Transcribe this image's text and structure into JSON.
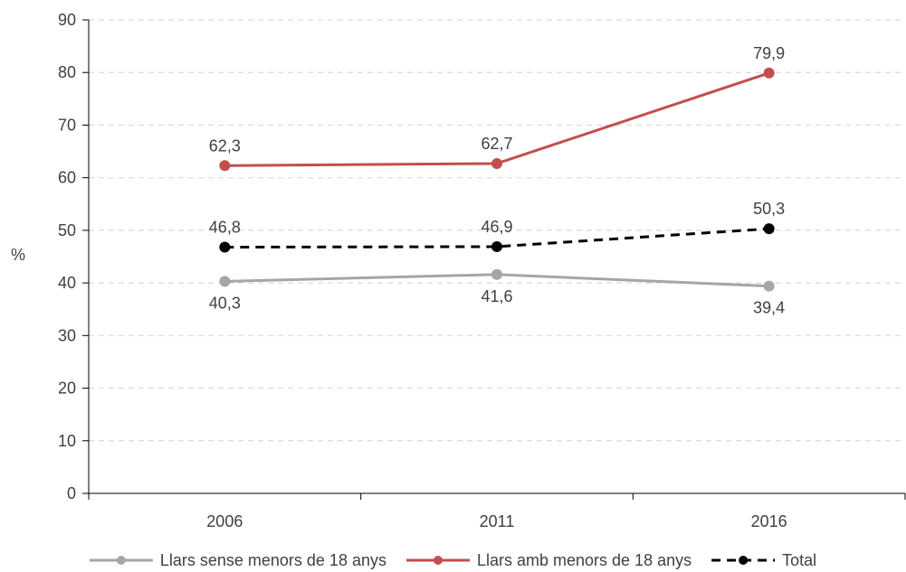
{
  "chart_data": {
    "type": "line",
    "title": "",
    "xlabel": "",
    "ylabel": "%",
    "categories": [
      "2006",
      "2011",
      "2016"
    ],
    "ylim": [
      0,
      90
    ],
    "yticks": [
      "0",
      "10",
      "20",
      "30",
      "40",
      "50",
      "60",
      "70",
      "80",
      "90"
    ],
    "grid": true,
    "legend_position": "bottom",
    "series": [
      {
        "name": "Llars sense menors de 18 anys",
        "values": [
          40.3,
          41.6,
          39.4
        ],
        "labels": [
          "40,3",
          "41,6",
          "39,4"
        ],
        "color": "#a6a6a6",
        "dashed": false,
        "label_position": "below"
      },
      {
        "name": "Llars amb menors de 18 anys",
        "values": [
          62.3,
          62.7,
          79.9
        ],
        "labels": [
          "62,3",
          "62,7",
          "79,9"
        ],
        "color": "#c0504d",
        "dashed": false,
        "label_position": "above"
      },
      {
        "name": "Total",
        "values": [
          46.8,
          46.9,
          50.3
        ],
        "labels": [
          "46,8",
          "46,9",
          "50,3"
        ],
        "color": "#000000",
        "dashed": true,
        "label_position": "above"
      }
    ]
  }
}
